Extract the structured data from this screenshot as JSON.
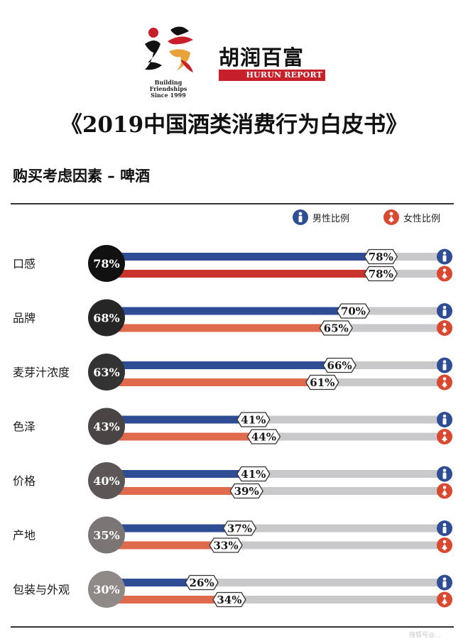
{
  "header": {
    "slogan_line1": "Building Friendships",
    "slogan_line2": "Since 1999",
    "brand_cn": "胡润百富",
    "brand_en": "HURUN REPORT"
  },
  "report_title": "《2019中国酒类消费行为白皮书》",
  "watermark": "搜狐号@…",
  "colors": {
    "male": "#2e4d94",
    "female_top": "#c8332b",
    "female": "#e06a4c",
    "track": "#c9c9cc"
  },
  "chart_data": {
    "type": "bar",
    "title": "购买考虑因素 – 啤酒",
    "legend": {
      "placement": "top-right",
      "male": "男性比例",
      "female": "女性比例"
    },
    "xlim": [
      0,
      100
    ],
    "unit": "%",
    "categories": [
      "口感",
      "品牌",
      "麦芽汁浓度",
      "色泽",
      "价格",
      "产地",
      "包装与外观"
    ],
    "overall": [
      78,
      68,
      63,
      43,
      40,
      35,
      30
    ],
    "overall_labels": [
      "78%",
      "68%",
      "63%",
      "43%",
      "40%",
      "35%",
      "30%"
    ],
    "series": [
      {
        "name": "男性比例",
        "values": [
          78,
          70,
          66,
          41,
          41,
          37,
          26
        ],
        "labels": [
          "78%",
          "70%",
          "66%",
          "41%",
          "41%",
          "37%",
          "26%"
        ]
      },
      {
        "name": "女性比例",
        "values": [
          78,
          65,
          61,
          44,
          39,
          33,
          34
        ],
        "labels": [
          "78%",
          "65%",
          "61%",
          "44%",
          "39%",
          "33%",
          "34%"
        ]
      }
    ]
  }
}
